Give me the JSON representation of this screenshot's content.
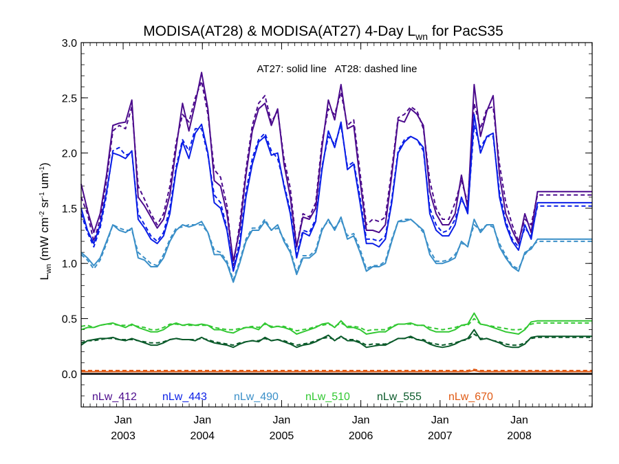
{
  "chart_data": {
    "type": "line",
    "title": {
      "main": "MODISA(AT28) & MODISA(AT27) 4-Day L",
      "sub": "wn",
      "tail": " for PacS35"
    },
    "ylabel": {
      "main": "L",
      "sub": "wn",
      "rest": " (mW cm",
      "e1": "-2",
      "mid1": " sr",
      "e2": "-1",
      "mid2": " um",
      "e3": "-1",
      "end": ")"
    },
    "annotation": "AT27: solid line   AT28: dashed line",
    "xlim": [
      2002.47,
      2008.92
    ],
    "ylim": [
      -0.3,
      3.0
    ],
    "yticks": [
      {
        "value": 0.0,
        "label": "0.0"
      },
      {
        "value": 0.5,
        "label": "0.5"
      },
      {
        "value": 1.0,
        "label": "1.0"
      },
      {
        "value": 1.5,
        "label": "1.5"
      },
      {
        "value": 2.0,
        "label": "2.0"
      },
      {
        "value": 2.5,
        "label": "2.5"
      },
      {
        "value": 3.0,
        "label": "3.0"
      }
    ],
    "xticks": [
      {
        "value": 2003.0,
        "month": "Jan",
        "year": "2003"
      },
      {
        "value": 2004.0,
        "month": "Jan",
        "year": "2004"
      },
      {
        "value": 2005.0,
        "month": "Jan",
        "year": "2005"
      },
      {
        "value": 2006.0,
        "month": "Jan",
        "year": "2006"
      },
      {
        "value": 2007.0,
        "month": "Jan",
        "year": "2007"
      },
      {
        "value": 2008.0,
        "month": "Jan",
        "year": "2008"
      }
    ],
    "zero_line": 0.0,
    "legend_placement": "bottom",
    "x": [
      2002.47,
      2002.55,
      2002.63,
      2002.71,
      2002.79,
      2002.87,
      2002.95,
      2003.03,
      2003.11,
      2003.19,
      2003.27,
      2003.35,
      2003.43,
      2003.51,
      2003.59,
      2003.67,
      2003.75,
      2003.83,
      2003.91,
      2003.99,
      2004.07,
      2004.15,
      2004.23,
      2004.31,
      2004.39,
      2004.47,
      2004.55,
      2004.63,
      2004.71,
      2004.79,
      2004.87,
      2004.95,
      2005.03,
      2005.11,
      2005.19,
      2005.27,
      2005.35,
      2005.43,
      2005.51,
      2005.59,
      2005.67,
      2005.75,
      2005.83,
      2005.91,
      2005.99,
      2006.07,
      2006.15,
      2006.23,
      2006.31,
      2006.39,
      2006.47,
      2006.55,
      2006.63,
      2006.71,
      2006.79,
      2006.87,
      2006.95,
      2007.03,
      2007.11,
      2007.19,
      2007.27,
      2007.35,
      2007.43,
      2007.51,
      2007.59,
      2007.67,
      2007.75,
      2007.83,
      2007.91,
      2007.99,
      2008.07,
      2008.15,
      2008.23,
      2008.31,
      2008.39,
      2008.47,
      2008.55,
      2008.63,
      2008.71,
      2008.79,
      2008.87,
      2008.92
    ],
    "series": [
      {
        "name": "nLw_412",
        "color": "#4b0a8c",
        "solid": [
          1.72,
          1.48,
          1.28,
          1.45,
          1.8,
          2.25,
          2.27,
          2.28,
          2.48,
          1.6,
          1.52,
          1.42,
          1.32,
          1.4,
          1.62,
          2.05,
          2.45,
          2.2,
          2.45,
          2.73,
          2.4,
          1.75,
          1.7,
          1.45,
          1.02,
          1.3,
          1.8,
          2.2,
          2.4,
          2.45,
          2.25,
          2.4,
          1.9,
          1.6,
          1.15,
          1.42,
          1.4,
          1.5,
          2.05,
          2.48,
          2.3,
          2.62,
          2.22,
          2.25,
          1.75,
          1.3,
          1.3,
          1.28,
          1.35,
          1.8,
          2.3,
          2.28,
          2.4,
          2.35,
          2.25,
          1.65,
          1.45,
          1.35,
          1.35,
          1.45,
          1.8,
          1.5,
          2.62,
          2.15,
          2.38,
          2.52,
          1.8,
          1.45,
          1.3,
          1.18,
          1.45,
          1.28,
          1.65,
          1.65,
          1.65,
          1.65,
          1.65,
          1.65,
          1.65,
          1.65,
          1.65,
          1.65
        ],
        "dashed": [
          1.6,
          1.45,
          1.2,
          1.4,
          1.75,
          2.2,
          2.25,
          2.22,
          2.42,
          1.7,
          1.58,
          1.45,
          1.35,
          1.45,
          1.7,
          2.1,
          2.35,
          2.28,
          2.5,
          2.65,
          2.35,
          1.85,
          1.78,
          1.52,
          0.98,
          1.35,
          1.85,
          2.25,
          2.45,
          2.52,
          2.28,
          2.38,
          1.95,
          1.68,
          1.15,
          1.45,
          1.42,
          1.55,
          2.1,
          2.4,
          2.35,
          2.55,
          2.25,
          2.3,
          1.82,
          1.35,
          1.4,
          1.38,
          1.42,
          1.85,
          2.32,
          2.35,
          2.42,
          2.38,
          2.22,
          1.75,
          1.5,
          1.4,
          1.4,
          1.55,
          1.75,
          1.55,
          2.45,
          2.22,
          2.4,
          2.42,
          1.9,
          1.55,
          1.35,
          1.2,
          1.4,
          1.35,
          1.62,
          1.62,
          1.62,
          1.62,
          1.62,
          1.62,
          1.62,
          1.62,
          1.62,
          1.62
        ]
      },
      {
        "name": "nLw_443",
        "color": "#0a1ee6",
        "solid": [
          1.5,
          1.3,
          1.18,
          1.35,
          1.65,
          2.0,
          1.98,
          1.95,
          2.02,
          1.4,
          1.32,
          1.22,
          1.18,
          1.25,
          1.45,
          1.85,
          2.1,
          1.95,
          2.18,
          2.26,
          2.0,
          1.55,
          1.5,
          1.3,
          0.93,
          1.15,
          1.6,
          1.9,
          2.1,
          2.15,
          1.98,
          2.0,
          1.7,
          1.45,
          1.05,
          1.28,
          1.25,
          1.38,
          1.85,
          2.2,
          2.05,
          2.28,
          1.85,
          1.9,
          1.55,
          1.18,
          1.18,
          1.15,
          1.22,
          1.55,
          2.0,
          2.1,
          2.15,
          2.12,
          2.05,
          1.45,
          1.3,
          1.25,
          1.25,
          1.35,
          1.6,
          1.45,
          2.35,
          2.0,
          2.15,
          2.18,
          1.6,
          1.35,
          1.2,
          1.12,
          1.35,
          1.22,
          1.55,
          1.55,
          1.55,
          1.55,
          1.55,
          1.55,
          1.55,
          1.55,
          1.55,
          1.55
        ],
        "dashed": [
          1.45,
          1.28,
          1.15,
          1.32,
          1.62,
          2.02,
          2.05,
          1.98,
          2.0,
          1.45,
          1.35,
          1.25,
          1.2,
          1.28,
          1.5,
          1.88,
          2.12,
          2.02,
          2.22,
          2.22,
          1.98,
          1.62,
          1.55,
          1.32,
          0.95,
          1.2,
          1.65,
          1.95,
          2.12,
          2.18,
          2.02,
          1.95,
          1.72,
          1.48,
          1.08,
          1.3,
          1.28,
          1.4,
          1.88,
          2.15,
          2.08,
          2.25,
          1.88,
          1.92,
          1.6,
          1.22,
          1.22,
          1.2,
          1.25,
          1.58,
          2.02,
          2.12,
          2.15,
          2.12,
          2.02,
          1.5,
          1.35,
          1.28,
          1.3,
          1.4,
          1.58,
          1.48,
          2.25,
          2.05,
          2.15,
          2.15,
          1.65,
          1.38,
          1.22,
          1.15,
          1.32,
          1.25,
          1.52,
          1.52,
          1.52,
          1.52,
          1.52,
          1.52,
          1.52,
          1.52,
          1.52,
          1.52
        ]
      },
      {
        "name": "nLw_490",
        "color": "#3a8fc8",
        "solid": [
          1.1,
          1.05,
          0.98,
          1.05,
          1.2,
          1.35,
          1.3,
          1.28,
          1.32,
          1.05,
          1.03,
          0.97,
          0.97,
          1.05,
          1.2,
          1.3,
          1.35,
          1.33,
          1.35,
          1.38,
          1.28,
          1.08,
          1.08,
          1.0,
          0.83,
          1.0,
          1.2,
          1.3,
          1.3,
          1.38,
          1.3,
          1.35,
          1.2,
          1.1,
          0.9,
          1.05,
          1.05,
          1.1,
          1.3,
          1.4,
          1.3,
          1.42,
          1.22,
          1.25,
          1.1,
          0.93,
          0.97,
          0.97,
          1.0,
          1.2,
          1.38,
          1.38,
          1.4,
          1.35,
          1.3,
          1.08,
          1.0,
          1.0,
          1.02,
          1.05,
          1.2,
          1.15,
          1.4,
          1.28,
          1.35,
          1.35,
          1.15,
          1.05,
          0.97,
          0.93,
          1.1,
          1.13,
          1.22,
          1.22,
          1.22,
          1.22,
          1.22,
          1.22,
          1.22,
          1.22,
          1.22,
          1.22
        ],
        "dashed": [
          1.08,
          1.03,
          0.95,
          1.03,
          1.18,
          1.35,
          1.32,
          1.3,
          1.3,
          1.1,
          1.05,
          1.0,
          0.98,
          1.08,
          1.22,
          1.32,
          1.33,
          1.35,
          1.35,
          1.35,
          1.28,
          1.12,
          1.1,
          1.02,
          0.85,
          1.02,
          1.22,
          1.32,
          1.32,
          1.4,
          1.3,
          1.32,
          1.22,
          1.12,
          0.92,
          1.07,
          1.07,
          1.12,
          1.32,
          1.38,
          1.32,
          1.4,
          1.25,
          1.27,
          1.13,
          0.95,
          0.98,
          0.98,
          1.02,
          1.22,
          1.38,
          1.4,
          1.4,
          1.35,
          1.28,
          1.12,
          1.02,
          1.02,
          1.03,
          1.08,
          1.18,
          1.17,
          1.35,
          1.3,
          1.35,
          1.33,
          1.18,
          1.07,
          0.98,
          0.95,
          1.08,
          1.15,
          1.2,
          1.2,
          1.2,
          1.2,
          1.2,
          1.2,
          1.2,
          1.2,
          1.2,
          1.2
        ]
      },
      {
        "name": "nLw_510",
        "color": "#32c832",
        "solid": [
          0.4,
          0.42,
          0.42,
          0.44,
          0.45,
          0.46,
          0.44,
          0.42,
          0.45,
          0.42,
          0.4,
          0.38,
          0.38,
          0.4,
          0.44,
          0.46,
          0.44,
          0.45,
          0.44,
          0.45,
          0.44,
          0.4,
          0.4,
          0.38,
          0.37,
          0.4,
          0.42,
          0.42,
          0.4,
          0.46,
          0.42,
          0.43,
          0.42,
          0.4,
          0.36,
          0.38,
          0.4,
          0.42,
          0.45,
          0.46,
          0.42,
          0.48,
          0.42,
          0.42,
          0.4,
          0.36,
          0.37,
          0.38,
          0.38,
          0.42,
          0.45,
          0.45,
          0.46,
          0.44,
          0.44,
          0.4,
          0.38,
          0.38,
          0.38,
          0.4,
          0.44,
          0.45,
          0.55,
          0.45,
          0.44,
          0.42,
          0.4,
          0.38,
          0.37,
          0.36,
          0.4,
          0.47,
          0.48,
          0.48,
          0.48,
          0.48,
          0.48,
          0.48,
          0.48,
          0.48,
          0.48,
          0.48
        ],
        "dashed": [
          0.43,
          0.44,
          0.42,
          0.44,
          0.45,
          0.45,
          0.44,
          0.44,
          0.44,
          0.43,
          0.42,
          0.4,
          0.4,
          0.42,
          0.45,
          0.45,
          0.44,
          0.44,
          0.44,
          0.44,
          0.44,
          0.42,
          0.41,
          0.4,
          0.4,
          0.41,
          0.42,
          0.43,
          0.42,
          0.45,
          0.43,
          0.43,
          0.43,
          0.41,
          0.39,
          0.4,
          0.41,
          0.43,
          0.44,
          0.45,
          0.43,
          0.46,
          0.43,
          0.43,
          0.42,
          0.39,
          0.4,
          0.4,
          0.4,
          0.43,
          0.45,
          0.45,
          0.45,
          0.44,
          0.44,
          0.42,
          0.41,
          0.4,
          0.41,
          0.42,
          0.44,
          0.44,
          0.5,
          0.45,
          0.44,
          0.43,
          0.42,
          0.41,
          0.4,
          0.4,
          0.41,
          0.45,
          0.46,
          0.46,
          0.46,
          0.46,
          0.46,
          0.46,
          0.46,
          0.46,
          0.46,
          0.46
        ]
      },
      {
        "name": "nLw_555",
        "color": "#0a5a2a",
        "solid": [
          0.26,
          0.3,
          0.31,
          0.32,
          0.32,
          0.33,
          0.31,
          0.3,
          0.32,
          0.3,
          0.28,
          0.26,
          0.26,
          0.28,
          0.31,
          0.32,
          0.31,
          0.31,
          0.3,
          0.33,
          0.3,
          0.28,
          0.27,
          0.26,
          0.24,
          0.27,
          0.29,
          0.3,
          0.29,
          0.33,
          0.3,
          0.31,
          0.29,
          0.27,
          0.24,
          0.26,
          0.27,
          0.29,
          0.32,
          0.35,
          0.3,
          0.34,
          0.3,
          0.3,
          0.28,
          0.24,
          0.25,
          0.26,
          0.26,
          0.29,
          0.32,
          0.32,
          0.34,
          0.31,
          0.3,
          0.27,
          0.25,
          0.24,
          0.25,
          0.27,
          0.3,
          0.32,
          0.4,
          0.31,
          0.32,
          0.3,
          0.28,
          0.25,
          0.24,
          0.24,
          0.27,
          0.33,
          0.34,
          0.34,
          0.34,
          0.34,
          0.34,
          0.34,
          0.34,
          0.34,
          0.34,
          0.34
        ],
        "dashed": [
          0.28,
          0.3,
          0.3,
          0.31,
          0.32,
          0.32,
          0.31,
          0.31,
          0.31,
          0.3,
          0.29,
          0.28,
          0.28,
          0.29,
          0.31,
          0.32,
          0.31,
          0.31,
          0.31,
          0.32,
          0.31,
          0.29,
          0.28,
          0.27,
          0.26,
          0.28,
          0.29,
          0.3,
          0.3,
          0.32,
          0.3,
          0.31,
          0.3,
          0.28,
          0.26,
          0.27,
          0.28,
          0.3,
          0.32,
          0.33,
          0.31,
          0.33,
          0.31,
          0.31,
          0.29,
          0.26,
          0.27,
          0.27,
          0.27,
          0.29,
          0.32,
          0.32,
          0.33,
          0.31,
          0.31,
          0.28,
          0.27,
          0.26,
          0.27,
          0.28,
          0.3,
          0.31,
          0.36,
          0.32,
          0.32,
          0.3,
          0.29,
          0.27,
          0.26,
          0.26,
          0.28,
          0.32,
          0.33,
          0.33,
          0.33,
          0.33,
          0.33,
          0.33,
          0.33,
          0.33,
          0.33,
          0.33
        ]
      },
      {
        "name": "nLw_670",
        "color": "#e05a14",
        "solid": [
          0.02,
          0.02,
          0.02,
          0.02,
          0.02,
          0.02,
          0.02,
          0.02,
          0.02,
          0.02,
          0.02,
          0.02,
          0.02,
          0.02,
          0.02,
          0.02,
          0.02,
          0.02,
          0.02,
          0.02,
          0.02,
          0.02,
          0.02,
          0.02,
          0.02,
          0.02,
          0.02,
          0.02,
          0.02,
          0.02,
          0.02,
          0.02,
          0.02,
          0.02,
          0.02,
          0.02,
          0.02,
          0.02,
          0.02,
          0.02,
          0.02,
          0.02,
          0.02,
          0.02,
          0.02,
          0.02,
          0.02,
          0.02,
          0.02,
          0.02,
          0.02,
          0.02,
          0.02,
          0.02,
          0.02,
          0.02,
          0.02,
          0.02,
          0.02,
          0.02,
          0.02,
          0.02,
          0.03,
          0.02,
          0.02,
          0.02,
          0.02,
          0.02,
          0.02,
          0.02,
          0.02,
          0.02,
          0.02,
          0.02,
          0.02,
          0.02,
          0.02,
          0.02,
          0.02,
          0.02,
          0.02,
          0.02
        ],
        "dashed": [
          0.03,
          0.03,
          0.03,
          0.03,
          0.03,
          0.03,
          0.03,
          0.03,
          0.03,
          0.03,
          0.03,
          0.03,
          0.03,
          0.03,
          0.03,
          0.03,
          0.03,
          0.03,
          0.03,
          0.03,
          0.03,
          0.03,
          0.03,
          0.03,
          0.03,
          0.03,
          0.03,
          0.03,
          0.03,
          0.03,
          0.03,
          0.03,
          0.03,
          0.03,
          0.03,
          0.03,
          0.03,
          0.03,
          0.03,
          0.03,
          0.03,
          0.03,
          0.03,
          0.03,
          0.03,
          0.03,
          0.03,
          0.03,
          0.03,
          0.03,
          0.03,
          0.03,
          0.03,
          0.03,
          0.03,
          0.03,
          0.03,
          0.03,
          0.03,
          0.03,
          0.03,
          0.03,
          0.04,
          0.03,
          0.03,
          0.03,
          0.03,
          0.03,
          0.03,
          0.03,
          0.03,
          0.03,
          0.03,
          0.03,
          0.03,
          0.03,
          0.03,
          0.03,
          0.03,
          0.03,
          0.03,
          0.03
        ]
      }
    ]
  }
}
